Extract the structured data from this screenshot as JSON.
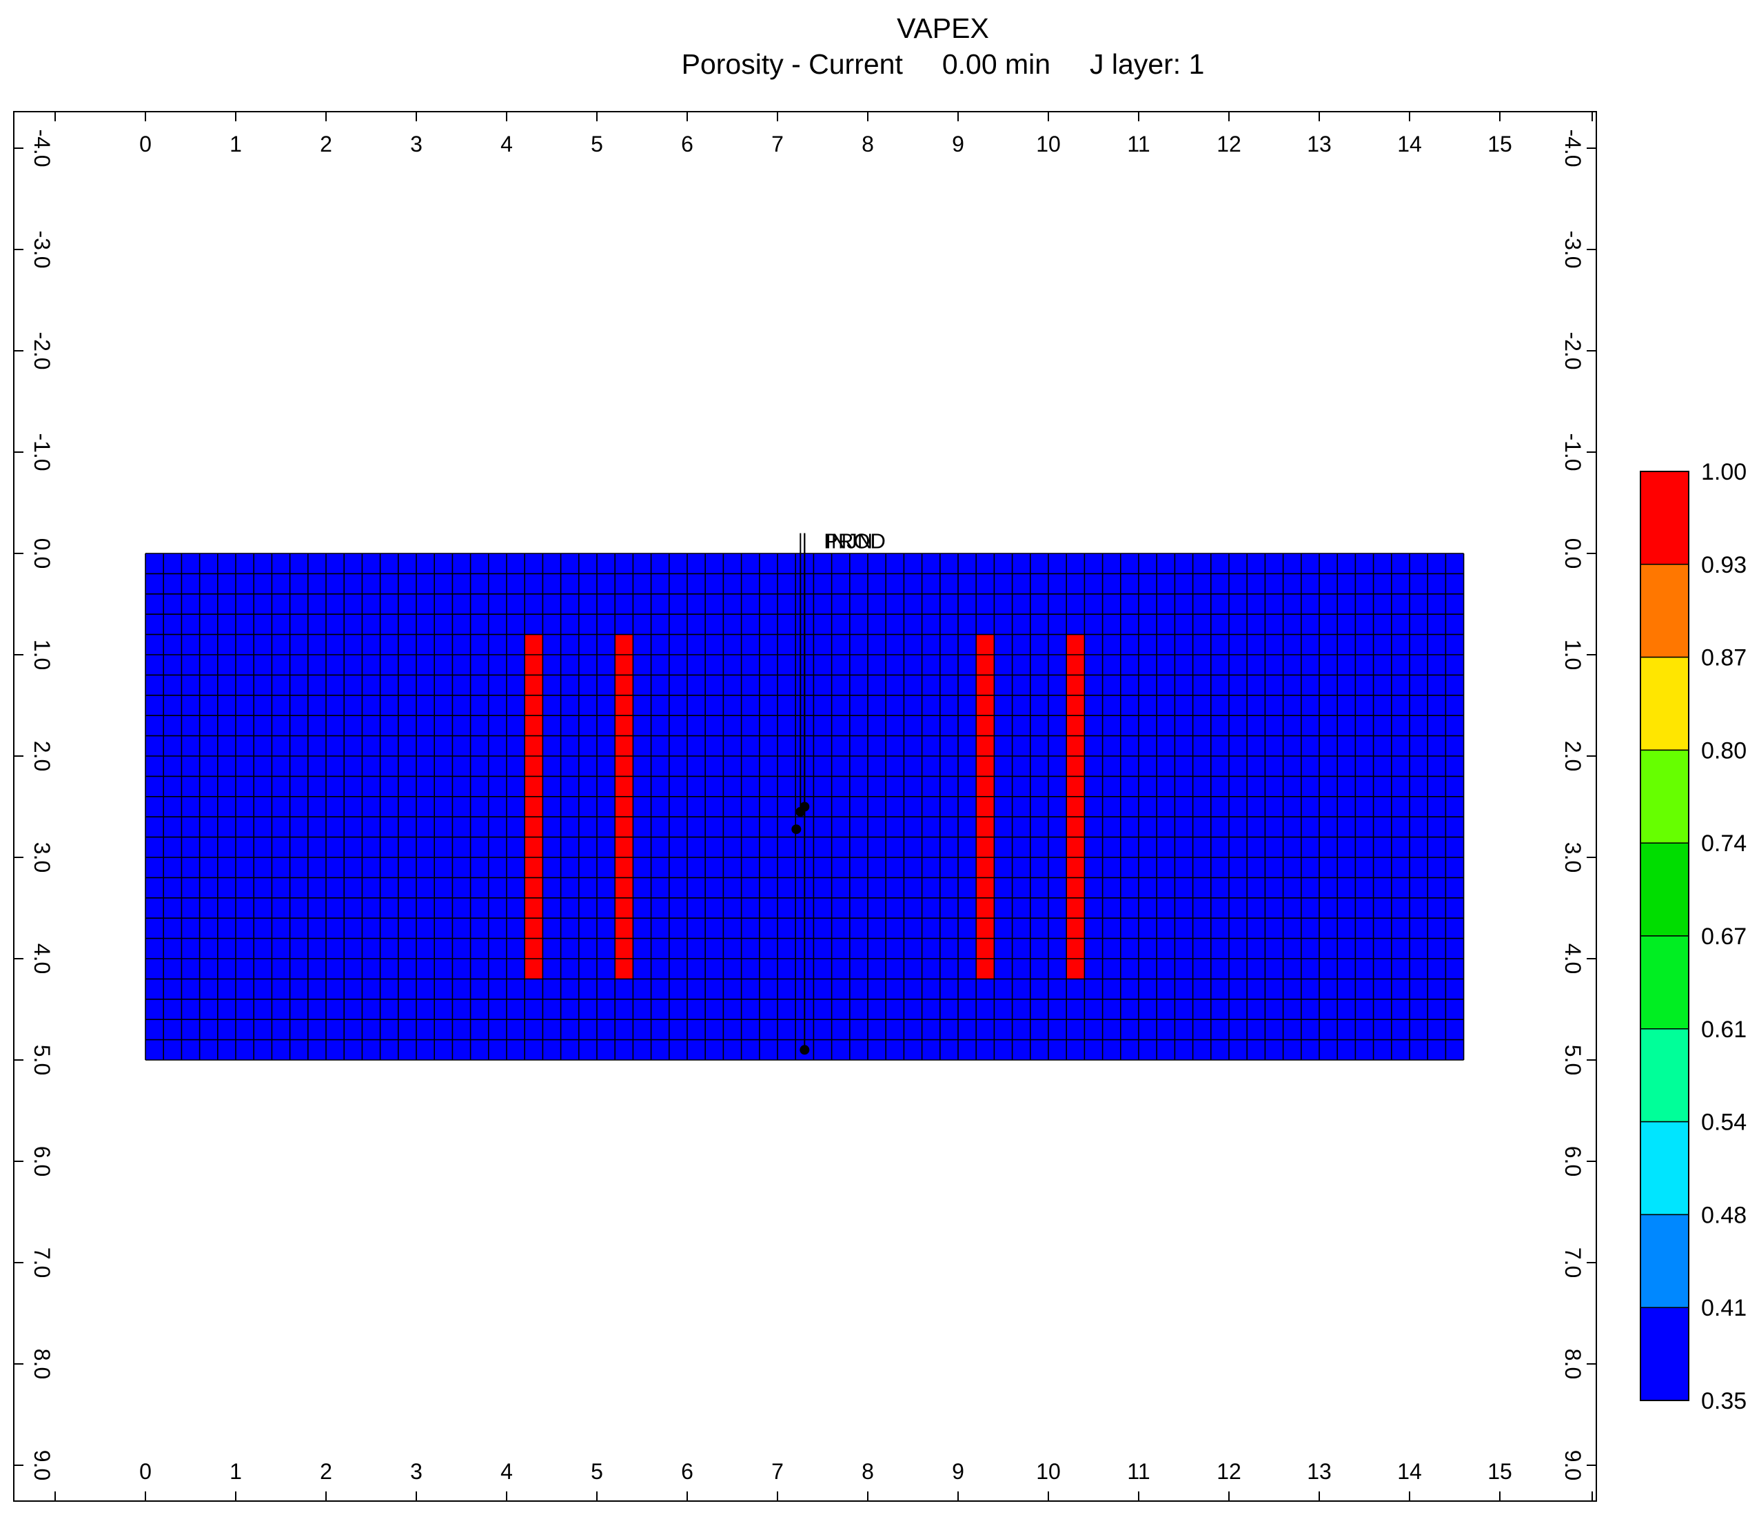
{
  "chart_data": {
    "type": "heatmap",
    "title": "VAPEX",
    "subtitle": "Porosity - Current     0.00 min     J layer: 1",
    "x_ticks": [
      "0",
      "1",
      "2",
      "3",
      "4",
      "5",
      "6",
      "7",
      "8",
      "9",
      "10",
      "11",
      "12",
      "13",
      "14",
      "15"
    ],
    "y_ticks": [
      "-4.0",
      "-3.0",
      "-2.0",
      "-1.0",
      "0.0",
      "1.0",
      "2.0",
      "3.0",
      "4.0",
      "5.0",
      "6.0",
      "7.0",
      "8.0",
      "9.0"
    ],
    "xlim": [
      -1.0,
      16.0
    ],
    "ylim": [
      -4.4,
      9.3
    ],
    "grid": {
      "x_range": [
        0,
        14.6
      ],
      "y_range": [
        0,
        5.0
      ],
      "nx": 73,
      "ny": 25,
      "background_value": 0.35
    },
    "high_zones": [
      {
        "x": [
          4.2,
          4.4
        ],
        "y": [
          0.8,
          4.2
        ],
        "value": 1.0
      },
      {
        "x": [
          5.2,
          5.4
        ],
        "y": [
          0.8,
          4.2
        ],
        "value": 1.0
      },
      {
        "x": [
          9.2,
          9.4
        ],
        "y": [
          0.8,
          4.2
        ],
        "value": 1.0
      },
      {
        "x": [
          10.2,
          10.4
        ],
        "y": [
          0.8,
          4.2
        ],
        "value": 1.0
      }
    ],
    "wells": [
      {
        "label": "PROD",
        "x": 7.3,
        "y_top": -0.2,
        "y_bottom": 4.9,
        "markers": [
          2.5,
          4.9
        ]
      },
      {
        "label": "INJ",
        "x": 7.3,
        "y_top": -0.2,
        "y_bottom": 2.5,
        "markers": [
          2.55
        ]
      },
      {
        "label": "INJ",
        "x": 7.3,
        "y_top": -0.2,
        "y_bottom": 2.6,
        "markers": [
          2.6
        ]
      }
    ],
    "well_label_text": "PROD",
    "well_label_overlap_text": "INJN",
    "colorbar": {
      "labels": [
        "1.00",
        "0.93",
        "0.87",
        "0.80",
        "0.74",
        "0.67",
        "0.61",
        "0.54",
        "0.48",
        "0.41",
        "0.35"
      ],
      "colors": [
        "#ff0000",
        "#ff7700",
        "#ffe600",
        "#66ff00",
        "#00dd00",
        "#00ee22",
        "#00ff99",
        "#00e5ff",
        "#0088ff",
        "#0000ff"
      ]
    }
  }
}
